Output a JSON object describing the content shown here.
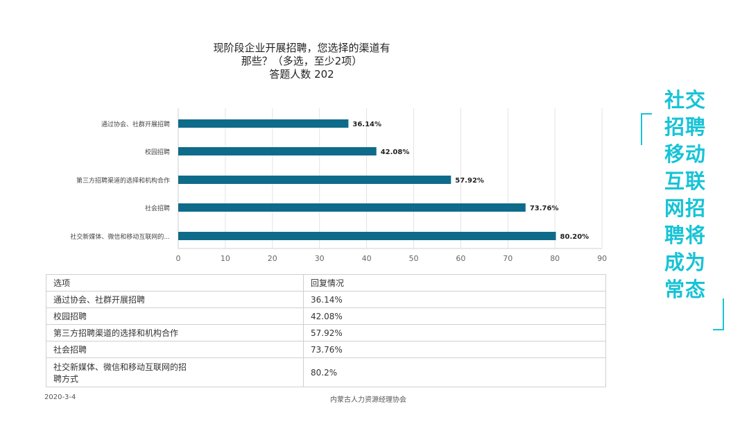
{
  "title_lines": [
    "现阶段企业开展招聘，您选择的渠道有",
    "那些？（多选，至少2项）",
    "答题人数 202"
  ],
  "chart_data": {
    "type": "bar",
    "orientation": "horizontal",
    "categories": [
      "通过协会、社群开展招聘",
      "校园招聘",
      "第三方招聘渠道的选择和机构合作",
      "社会招聘",
      "社交新媒体、微信和移动互联网的..."
    ],
    "values": [
      36.14,
      42.08,
      57.92,
      73.76,
      80.2
    ],
    "value_labels": [
      "36.14%",
      "42.08%",
      "57.92%",
      "73.76%",
      "80.20%"
    ],
    "x_ticks": [
      0,
      10,
      20,
      30,
      40,
      50,
      60,
      70,
      80,
      90
    ],
    "xlim": [
      0,
      90
    ],
    "grid": "vertical",
    "bar_color": "#0f6b8a"
  },
  "table": {
    "header": [
      "选项",
      "回复情况"
    ],
    "rows": [
      {
        "option": "通过协会、社群开展招聘",
        "reply": "36.14%"
      },
      {
        "option": "校园招聘",
        "reply": "42.08%"
      },
      {
        "option": "第三方招聘渠道的选择和机构合作",
        "reply": "57.92%"
      },
      {
        "option": "社会招聘",
        "reply": "73.76%"
      },
      {
        "option_lines": [
          "社交新媒体、微信和移动互联网的招",
          "聘方式"
        ],
        "reply": "80.2%"
      }
    ]
  },
  "footer": {
    "date": "2020-3-4",
    "org": "内蒙古人力资源经理协会"
  },
  "side_text_lines": [
    "社交",
    "招聘",
    "移动",
    "互联",
    "网招",
    "聘将",
    "成为",
    "常态"
  ],
  "accent_color": "#17c3d6"
}
